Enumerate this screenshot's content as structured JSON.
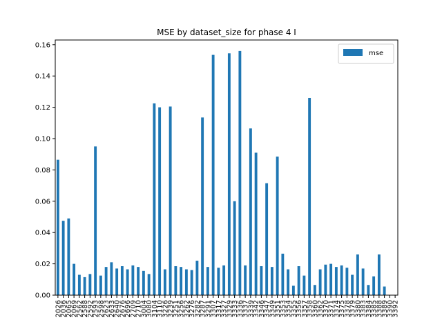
{
  "chart_data": {
    "type": "bar",
    "title": "MSE by dataset_size for phase 4 I",
    "xlabel": "",
    "ylabel": "",
    "ylim": [
      0,
      0.163
    ],
    "yticks": [
      "0.00",
      "0.02",
      "0.04",
      "0.06",
      "0.08",
      "0.10",
      "0.12",
      "0.14",
      "0.16"
    ],
    "legend_position": "top-right",
    "grid": false,
    "bar_color": "#1f77b4",
    "categories": [
      "2026",
      "2036",
      "2065",
      "2069",
      "2562",
      "2588",
      "2592",
      "2593",
      "2598",
      "2623",
      "2633",
      "2640",
      "2676",
      "2696",
      "2709",
      "2710",
      "3004",
      "3080",
      "3104",
      "3110",
      "3226",
      "3239",
      "3251",
      "3256",
      "3262",
      "3276",
      "3282",
      "3287",
      "3291",
      "3307",
      "3317",
      "3327",
      "3329",
      "3333",
      "3336",
      "3337",
      "3339",
      "3342",
      "3346",
      "3347",
      "3349",
      "3351",
      "3353",
      "3354",
      "3355",
      "3356",
      "3357",
      "3358",
      "3360",
      "3362",
      "3370",
      "3371",
      "3374",
      "3375",
      "3378",
      "3379",
      "3380",
      "3383",
      "3384",
      "3385",
      "3388",
      "3389",
      "3390",
      "3392"
    ],
    "xtick_labels": [
      "2026",
      "2036",
      "2065",
      "2069",
      "2562",
      "2588",
      "2592",
      "2593",
      "2598",
      "2623",
      "2633",
      "2640",
      "2676",
      "2696",
      "2709",
      "2710",
      "3004",
      "3080",
      "3104",
      "3110",
      "3226",
      "3239",
      "3251",
      "3256",
      "3262",
      "3276",
      "3282",
      "3287",
      "3291",
      "3307",
      "3317",
      "3327",
      "3329",
      "3333",
      "3336",
      "3337",
      "3339",
      "3342",
      "3346",
      "3347",
      "3349",
      "3351",
      "3353",
      "3354",
      "3355",
      "3356",
      "3357",
      "3358",
      "3360",
      "3362",
      "3370",
      "3371",
      "3374",
      "3375",
      "3378",
      "3379",
      "3380",
      "3383",
      "3384",
      "3385",
      "3388",
      "3389",
      "3390",
      "3392"
    ],
    "series": [
      {
        "name": "mse",
        "values": [
          0.0865,
          0.0475,
          0.049,
          0.02,
          0.013,
          0.0115,
          0.0135,
          0.095,
          0.0125,
          0.018,
          0.021,
          0.017,
          0.0185,
          0.0165,
          0.019,
          0.018,
          0.0155,
          0.0135,
          0.1225,
          0.12,
          0.0165,
          0.1205,
          0.0185,
          0.018,
          0.0165,
          0.016,
          0.022,
          0.1135,
          0.018,
          0.1535,
          0.0175,
          0.019,
          0.1545,
          0.06,
          0.156,
          0.019,
          0.1065,
          0.091,
          0.0185,
          0.0715,
          0.018,
          0.0885,
          0.0265,
          0.0165,
          0.006,
          0.0185,
          0.0125,
          0.126,
          0.0065,
          0.0165,
          0.0195,
          0.02,
          0.018,
          0.019,
          0.0175,
          0.013,
          0.026,
          0.017,
          0.0065,
          0.012,
          0.026,
          0.0055,
          0.0,
          0.0
        ]
      }
    ]
  }
}
